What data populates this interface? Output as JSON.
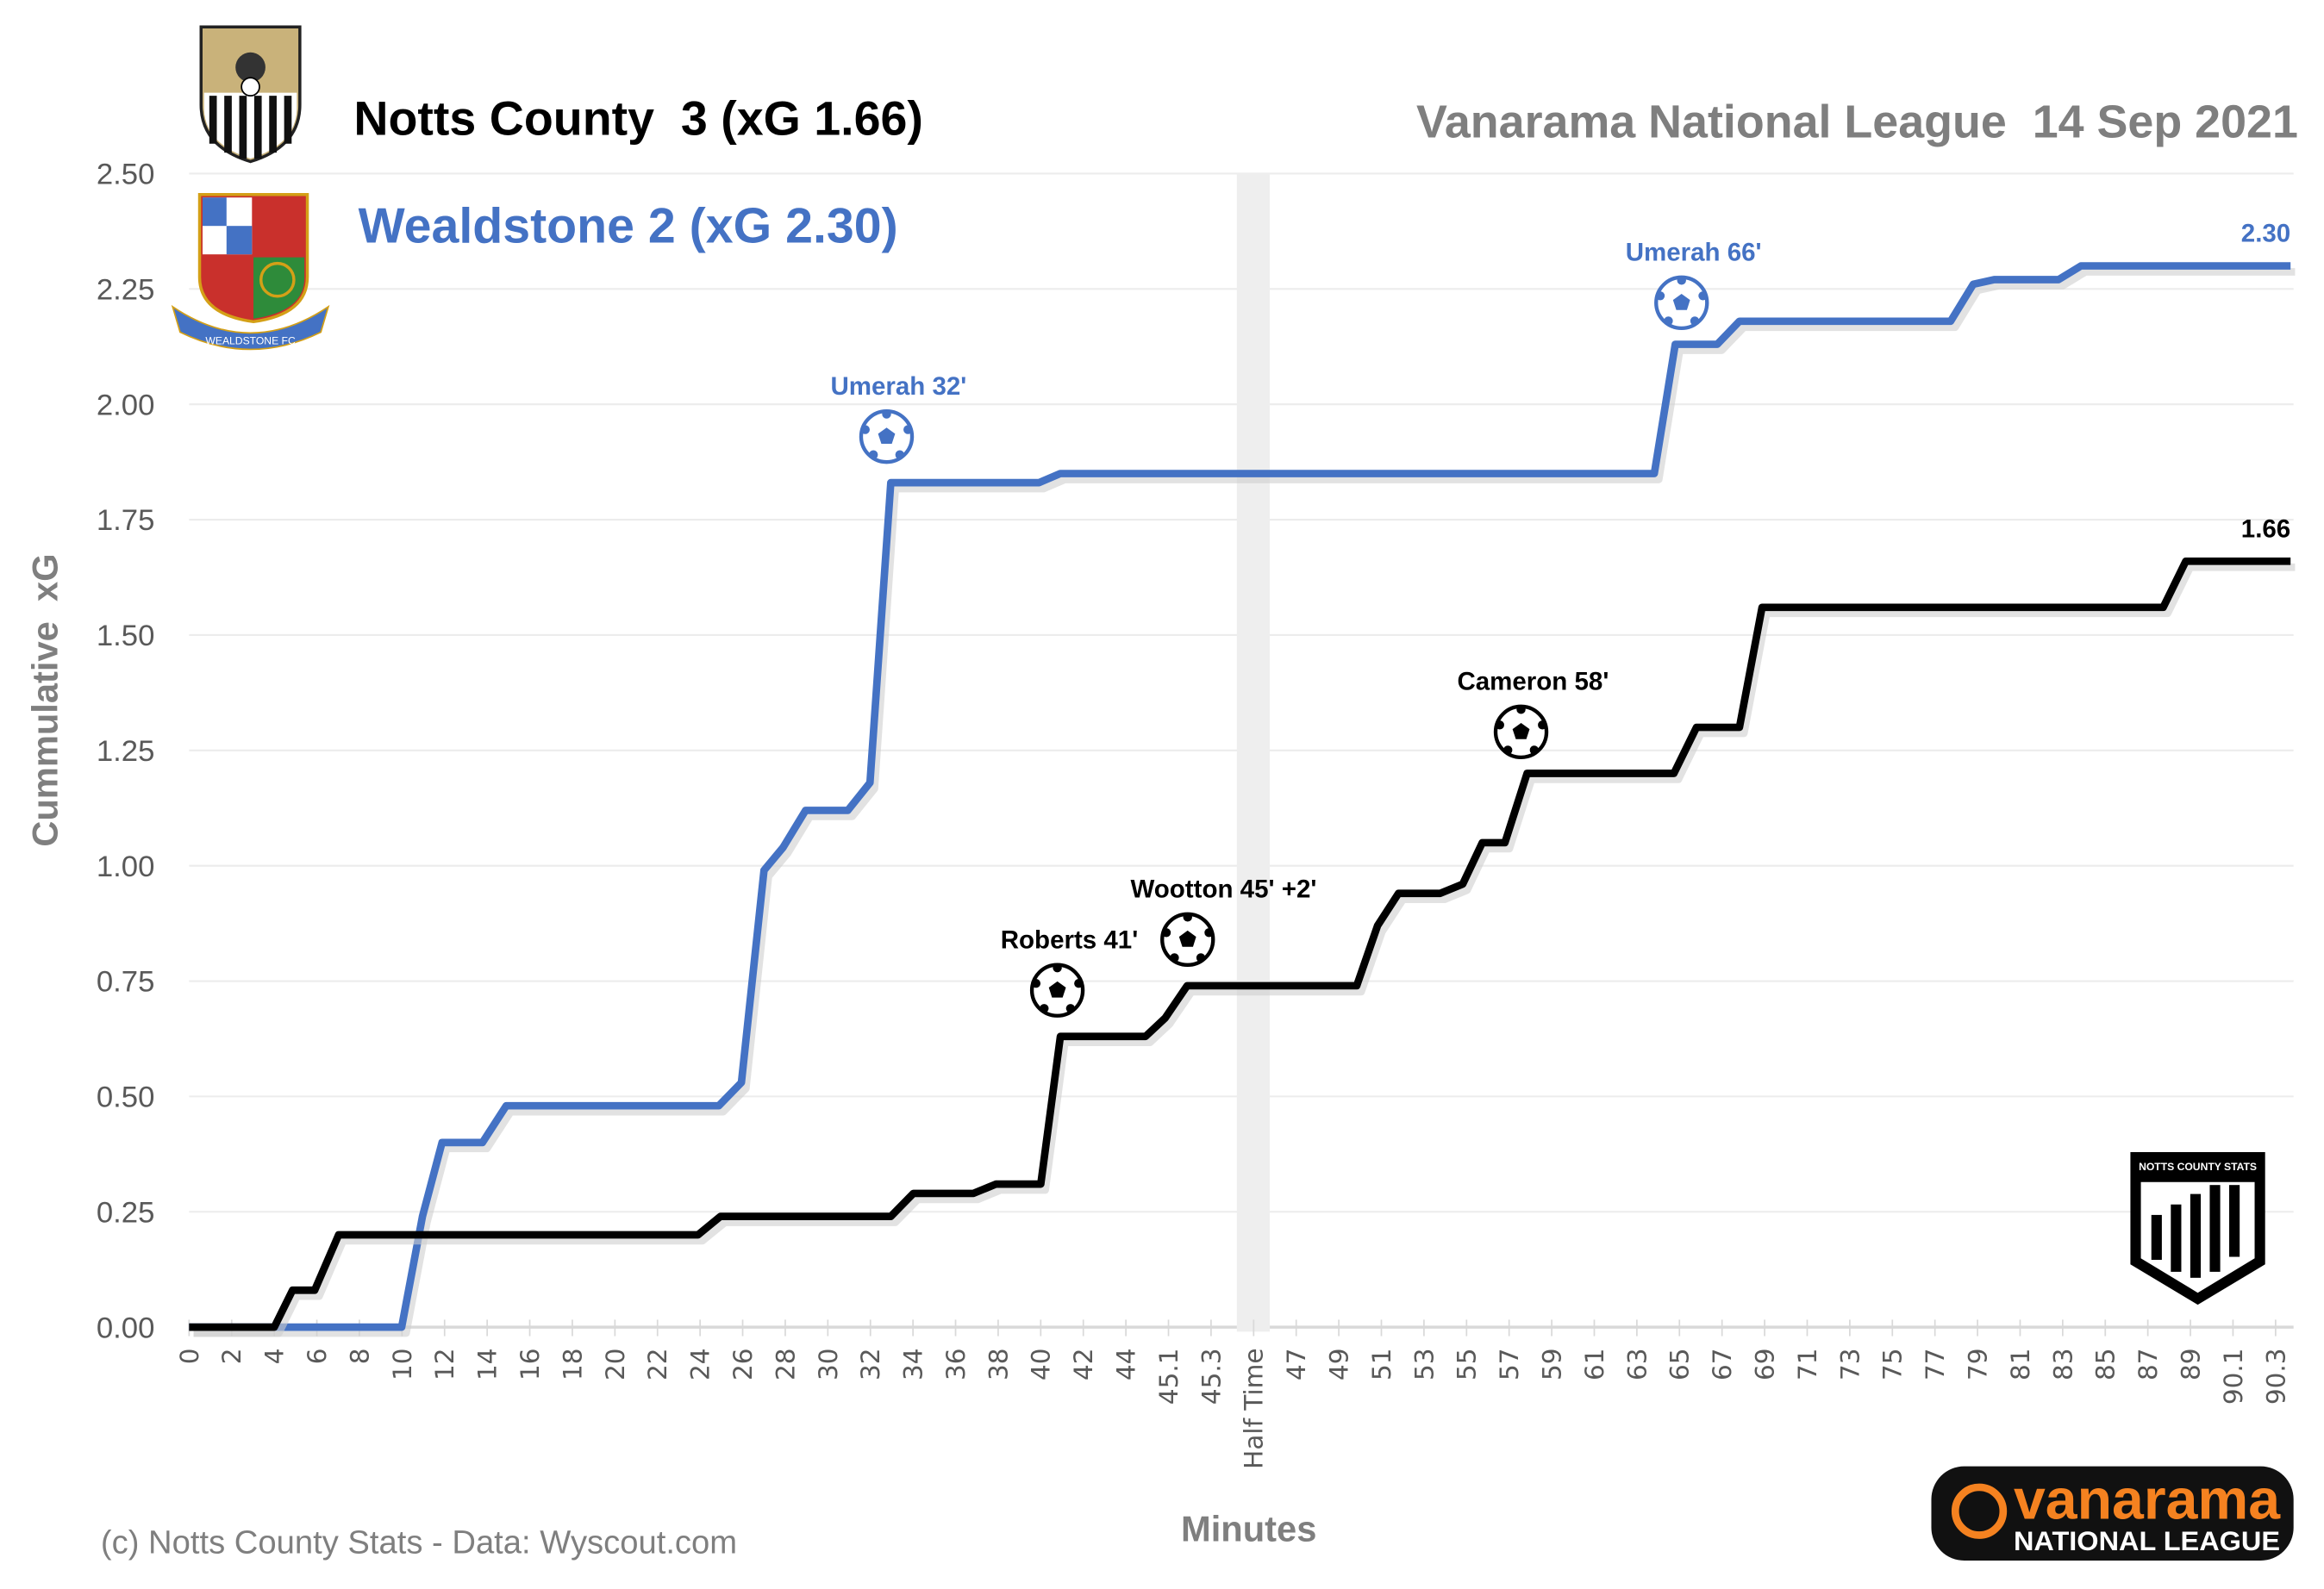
{
  "header": {
    "home_title": "Notts County  3 (xG 1.66)",
    "away_title": "Wealdstone 2 (xG 2.30)",
    "competition_date": "Vanarama National League  14 Sep 2021"
  },
  "footer": {
    "credit": "(c) Notts County Stats - Data: Wyscout.com"
  },
  "logos": {
    "home_crest": "Notts County FC",
    "away_crest": "Wealdstone FC",
    "stats_logo": "NOTTS COUNTY STATS",
    "league_logo_top": "vanarama",
    "league_logo_bottom": "NATIONAL LEAGUE"
  },
  "colors": {
    "home": "#000000",
    "away": "#4472c4",
    "grid": "#e6e6e6",
    "halftime_band": "#eeeeee",
    "axis_text": "#595959",
    "title_grey": "#7f7f7f",
    "vanarama_orange": "#f58220"
  },
  "chart_data": {
    "type": "line",
    "xlabel": "Minutes",
    "ylabel": "Cummulative  xG",
    "ylim": [
      0,
      2.5
    ],
    "yticks": [
      "0.00",
      "0.25",
      "0.50",
      "0.75",
      "1.00",
      "1.25",
      "1.50",
      "1.75",
      "2.00",
      "2.25",
      "2.50"
    ],
    "grid": true,
    "categories": [
      "0",
      "2",
      "4",
      "6",
      "8",
      "10",
      "12",
      "14",
      "16",
      "18",
      "20",
      "22",
      "24",
      "26",
      "28",
      "30",
      "32",
      "34",
      "36",
      "38",
      "40",
      "42",
      "44",
      "45.1",
      "45.3",
      "Half Time",
      "47",
      "49",
      "51",
      "53",
      "55",
      "57",
      "59",
      "61",
      "63",
      "65",
      "67",
      "69",
      "71",
      "73",
      "75",
      "77",
      "79",
      "81",
      "83",
      "85",
      "87",
      "89",
      "90.1",
      "90.3"
    ],
    "halftime_category": "Half Time",
    "series": [
      {
        "name": "Wealdstone",
        "color": "#4472c4",
        "end_label": "2.30",
        "points": [
          [
            0,
            0
          ],
          [
            4.99,
            0
          ],
          [
            5.48,
            0.24
          ],
          [
            5.94,
            0.4
          ],
          [
            6.89,
            0.4
          ],
          [
            7.45,
            0.48
          ],
          [
            12.44,
            0.48
          ],
          [
            12.97,
            0.53
          ],
          [
            13.5,
            0.99
          ],
          [
            13.95,
            1.04
          ],
          [
            14.48,
            1.12
          ],
          [
            15.47,
            1.12
          ],
          [
            15.99,
            1.18
          ],
          [
            16.48,
            1.83
          ],
          [
            19.96,
            1.83
          ],
          [
            20.46,
            1.85
          ],
          [
            34.41,
            1.85
          ],
          [
            34.9,
            2.13
          ],
          [
            35.89,
            2.13
          ],
          [
            36.41,
            2.18
          ],
          [
            41.37,
            2.18
          ],
          [
            41.9,
            2.26
          ],
          [
            42.39,
            2.27
          ],
          [
            43.9,
            2.27
          ],
          [
            44.43,
            2.3
          ],
          [
            49.35,
            2.3
          ]
        ]
      },
      {
        "name": "Notts County",
        "color": "#000000",
        "end_label": "1.66",
        "points": [
          [
            0,
            0
          ],
          [
            2.0,
            0
          ],
          [
            2.43,
            0.08
          ],
          [
            2.95,
            0.08
          ],
          [
            3.51,
            0.2
          ],
          [
            11.95,
            0.2
          ],
          [
            12.48,
            0.24
          ],
          [
            16.48,
            0.24
          ],
          [
            17.01,
            0.29
          ],
          [
            18.42,
            0.29
          ],
          [
            18.95,
            0.31
          ],
          [
            20.0,
            0.31
          ],
          [
            20.46,
            0.63
          ],
          [
            22.46,
            0.63
          ],
          [
            22.92,
            0.67
          ],
          [
            23.44,
            0.74
          ],
          [
            27.42,
            0.74
          ],
          [
            27.91,
            0.87
          ],
          [
            28.4,
            0.94
          ],
          [
            29.38,
            0.94
          ],
          [
            29.91,
            0.96
          ],
          [
            30.37,
            1.05
          ],
          [
            30.9,
            1.05
          ],
          [
            31.42,
            1.2
          ],
          [
            34.87,
            1.2
          ],
          [
            35.4,
            1.3
          ],
          [
            36.41,
            1.3
          ],
          [
            36.94,
            1.56
          ],
          [
            46.36,
            1.56
          ],
          [
            46.89,
            1.66
          ],
          [
            49.35,
            1.66
          ]
        ]
      }
    ],
    "annotations": [
      {
        "text": "Umerah 32'",
        "team": "Wealdstone",
        "x": 16.38,
        "y": 1.93,
        "color": "#4472c4"
      },
      {
        "text": "Umerah 66'",
        "team": "Wealdstone",
        "x": 35.05,
        "y": 2.22,
        "color": "#4472c4"
      },
      {
        "text": "Roberts 41'",
        "team": "Notts County",
        "x": 20.39,
        "y": 0.73,
        "color": "#000000"
      },
      {
        "text": "Wootton 45' +2'",
        "team": "Notts County",
        "x": 23.45,
        "y": 0.84,
        "color": "#000000"
      },
      {
        "text": "Cameron 58'",
        "team": "Notts County",
        "x": 31.28,
        "y": 1.29,
        "color": "#000000"
      }
    ]
  }
}
